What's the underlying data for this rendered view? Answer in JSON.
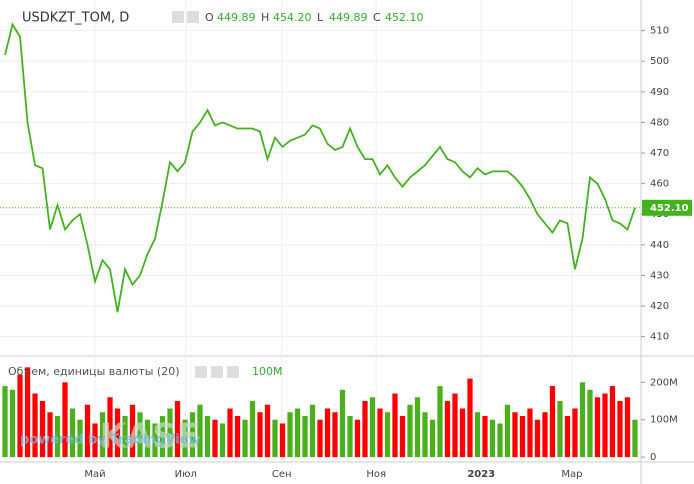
{
  "chart_data": {
    "type": "line",
    "symbol": "USDKZT_TOM, D",
    "ohlc": [
      {
        "key": "O",
        "value": 449.89
      },
      {
        "key": "H",
        "value": {
          "value": 454.2,
          "label": "454.20"
        }
      },
      {
        "key": "L",
        "value": 449.89
      },
      {
        "key": "C",
        "value": {
          "value": 452.1,
          "label": "452.10"
        }
      }
    ],
    "last_price": {
      "value": 452.1,
      "label": "452.10"
    },
    "color": "#44b21f",
    "values": [
      502,
      512,
      508,
      480,
      466,
      465,
      445,
      453,
      445,
      448,
      450,
      440,
      428,
      435,
      432,
      418,
      432,
      427,
      430,
      437,
      442,
      454,
      467,
      464,
      467,
      477,
      480,
      484,
      479,
      480,
      479,
      478,
      478,
      478,
      477,
      468,
      475,
      472,
      474,
      475,
      476,
      479,
      478,
      473,
      471,
      472,
      478,
      472,
      468,
      468,
      463,
      466,
      462,
      459,
      462,
      464,
      466,
      469,
      472,
      468,
      467,
      464,
      462,
      465,
      463,
      464,
      464,
      464,
      462,
      459,
      455,
      450,
      447,
      444,
      448,
      447,
      432,
      442,
      462,
      460,
      455,
      448,
      447,
      445,
      452.1
    ],
    "ylim": [
      404,
      520
    ],
    "yticks": [
      410,
      420,
      430,
      440,
      450,
      460,
      470,
      480,
      490,
      500,
      510
    ],
    "xlim": [
      -0.67,
      84.67
    ],
    "xticks": [
      {
        "value": 12,
        "label": "Май"
      },
      {
        "value": 24.1,
        "label": "Июл"
      },
      {
        "value": 36.9,
        "label": "Сен"
      },
      {
        "value": 49.5,
        "label": "Ноя"
      },
      {
        "value": 63.5,
        "label": "2023"
      },
      {
        "value": 75.6,
        "label": "Мар"
      }
    ],
    "volume": {
      "title": "Объем, единицы валюты (20)",
      "last_label": "100M",
      "up_color": "#4caf1e",
      "down_color": "#ff0000",
      "values": [
        190000000,
        180000000,
        220000000,
        240000000,
        170000000,
        150000000,
        120000000,
        110000000,
        200000000,
        130000000,
        100000000,
        140000000,
        90000000,
        120000000,
        160000000,
        130000000,
        110000000,
        140000000,
        120000000,
        100000000,
        90000000,
        110000000,
        130000000,
        150000000,
        100000000,
        120000000,
        140000000,
        110000000,
        100000000,
        90000000,
        130000000,
        110000000,
        100000000,
        150000000,
        120000000,
        140000000,
        100000000,
        90000000,
        120000000,
        130000000,
        110000000,
        140000000,
        100000000,
        130000000,
        120000000,
        180000000,
        110000000,
        100000000,
        150000000,
        160000000,
        130000000,
        120000000,
        170000000,
        110000000,
        140000000,
        160000000,
        120000000,
        100000000,
        190000000,
        150000000,
        170000000,
        130000000,
        210000000,
        120000000,
        110000000,
        100000000,
        90000000,
        140000000,
        120000000,
        110000000,
        130000000,
        100000000,
        120000000,
        190000000,
        150000000,
        110000000,
        130000000,
        200000000,
        180000000,
        160000000,
        170000000,
        190000000,
        150000000,
        160000000,
        100000000
      ],
      "ylim": [
        -13000000,
        265000000
      ],
      "yticks": [
        0,
        {
          "value": 100000000,
          "label": "100M"
        },
        {
          "value": 200000000,
          "label": "200M"
        }
      ]
    },
    "watermark": "KASE",
    "powered_by": "powered by TradingView"
  }
}
